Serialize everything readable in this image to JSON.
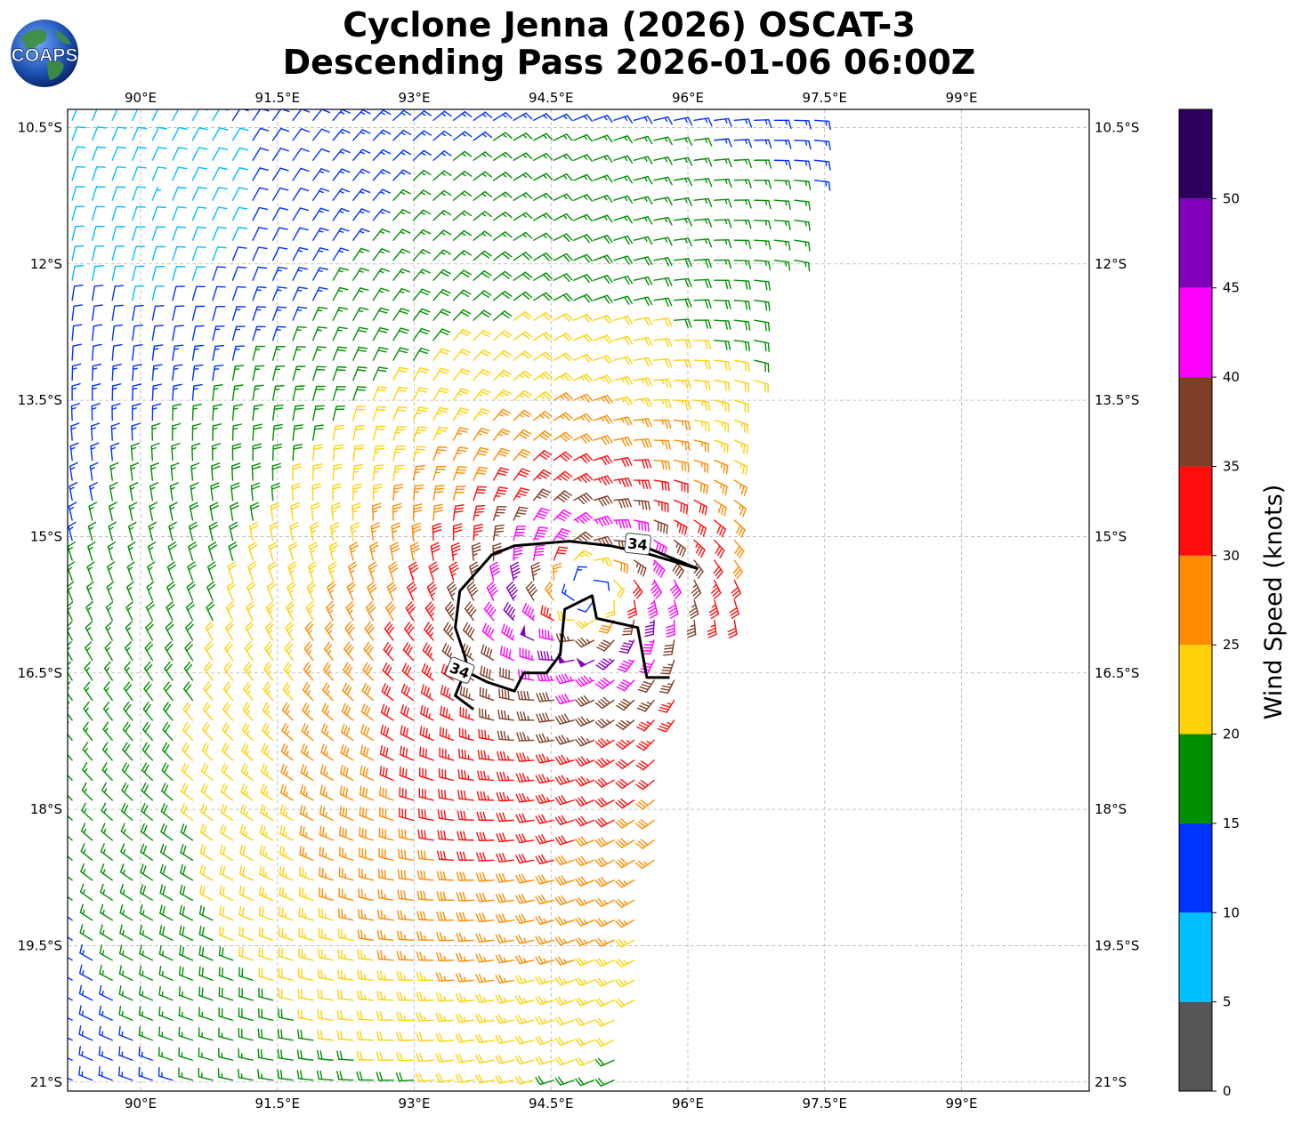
{
  "title": {
    "line1": "Cyclone Jenna (2026) OSCAT-3",
    "line2": "Descending Pass 2026-01-06 06:00Z"
  },
  "logo": {
    "text": "COAPS",
    "icon": "globe-icon"
  },
  "map": {
    "lon_range": [
      89.2,
      100.4
    ],
    "lat_range": [
      -21.1,
      -10.3
    ],
    "lon_ticks": [
      {
        "value": 90,
        "label": "90°E"
      },
      {
        "value": 91.5,
        "label": "91.5°E"
      },
      {
        "value": 93,
        "label": "93°E"
      },
      {
        "value": 94.5,
        "label": "94.5°E"
      },
      {
        "value": 96,
        "label": "96°E"
      },
      {
        "value": 97.5,
        "label": "97.5°E"
      },
      {
        "value": 99,
        "label": "99°E"
      }
    ],
    "lat_ticks": [
      {
        "value": -10.5,
        "label": "10.5°S"
      },
      {
        "value": -12,
        "label": "12°S"
      },
      {
        "value": -13.5,
        "label": "13.5°S"
      },
      {
        "value": -15,
        "label": "15°S"
      },
      {
        "value": -16.5,
        "label": "16.5°S"
      },
      {
        "value": -18,
        "label": "18°S"
      },
      {
        "value": -19.5,
        "label": "19.5°S"
      },
      {
        "value": -21,
        "label": "21°S"
      }
    ],
    "grid": "dashed",
    "storm_center": {
      "lon": 94.9,
      "lat": -15.6
    },
    "swath_east_edge_lon": [
      97.3,
      96.7,
      96.0
    ],
    "contour_label": "34",
    "contour_34kt": [
      [
        95.5,
        -15.1
      ],
      [
        96.1,
        -15.35
      ],
      [
        95.6,
        -15.2
      ],
      [
        95.15,
        -15.1
      ],
      [
        94.7,
        -15.05
      ],
      [
        94.1,
        -15.1
      ],
      [
        93.85,
        -15.2
      ],
      [
        93.5,
        -15.6
      ],
      [
        93.45,
        -16.0
      ],
      [
        93.55,
        -16.3
      ],
      [
        93.6,
        -16.5
      ],
      [
        93.8,
        -16.6
      ],
      [
        94.1,
        -16.7
      ],
      [
        94.2,
        -16.5
      ],
      [
        94.45,
        -16.5
      ],
      [
        94.6,
        -16.3
      ],
      [
        94.65,
        -15.8
      ],
      [
        94.95,
        -15.65
      ],
      [
        95.0,
        -15.9
      ],
      [
        95.45,
        -16.0
      ],
      [
        95.55,
        -16.55
      ],
      [
        95.8,
        -16.55
      ]
    ],
    "contour_tail": [
      [
        93.55,
        -16.5
      ],
      [
        93.45,
        -16.75
      ],
      [
        93.65,
        -16.9
      ]
    ]
  },
  "colorbar": {
    "label": "Wind Speed (knots)",
    "ticks": [
      "0",
      "5",
      "10",
      "15",
      "20",
      "25",
      "30",
      "35",
      "40",
      "45",
      "50"
    ],
    "bins": [
      {
        "min": 0,
        "max": 5,
        "color": "#555555"
      },
      {
        "min": 5,
        "max": 10,
        "color": "#00BFFF"
      },
      {
        "min": 10,
        "max": 15,
        "color": "#0033FF"
      },
      {
        "min": 15,
        "max": 20,
        "color": "#008F00"
      },
      {
        "min": 20,
        "max": 25,
        "color": "#FFD20A"
      },
      {
        "min": 25,
        "max": 30,
        "color": "#FF8C00"
      },
      {
        "min": 30,
        "max": 35,
        "color": "#FF0D0D"
      },
      {
        "min": 35,
        "max": 40,
        "color": "#7F3F26"
      },
      {
        "min": 40,
        "max": 45,
        "color": "#FF00FF"
      },
      {
        "min": 45,
        "max": 50,
        "color": "#8300BA"
      },
      {
        "min": 50,
        "max": 55,
        "color": "#2E005E"
      }
    ]
  }
}
